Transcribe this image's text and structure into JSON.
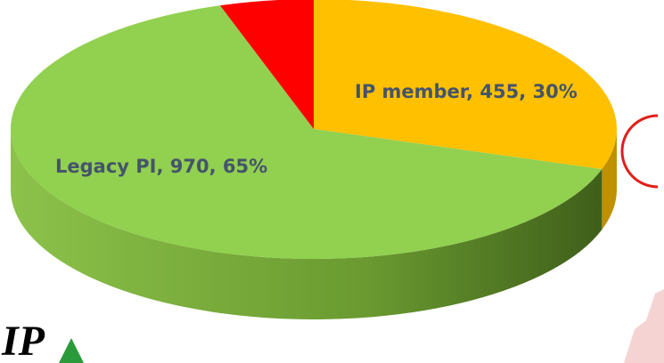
{
  "chart_data": {
    "type": "pie",
    "values": [
      30,
      65,
      5
    ],
    "value_labels": [
      "IP member, 455, 30%",
      "Legacy PI, 970, 65%",
      null
    ],
    "colors": [
      "#ffc000",
      "#92d050",
      "#ff0000"
    ],
    "logo": "IP"
  }
}
